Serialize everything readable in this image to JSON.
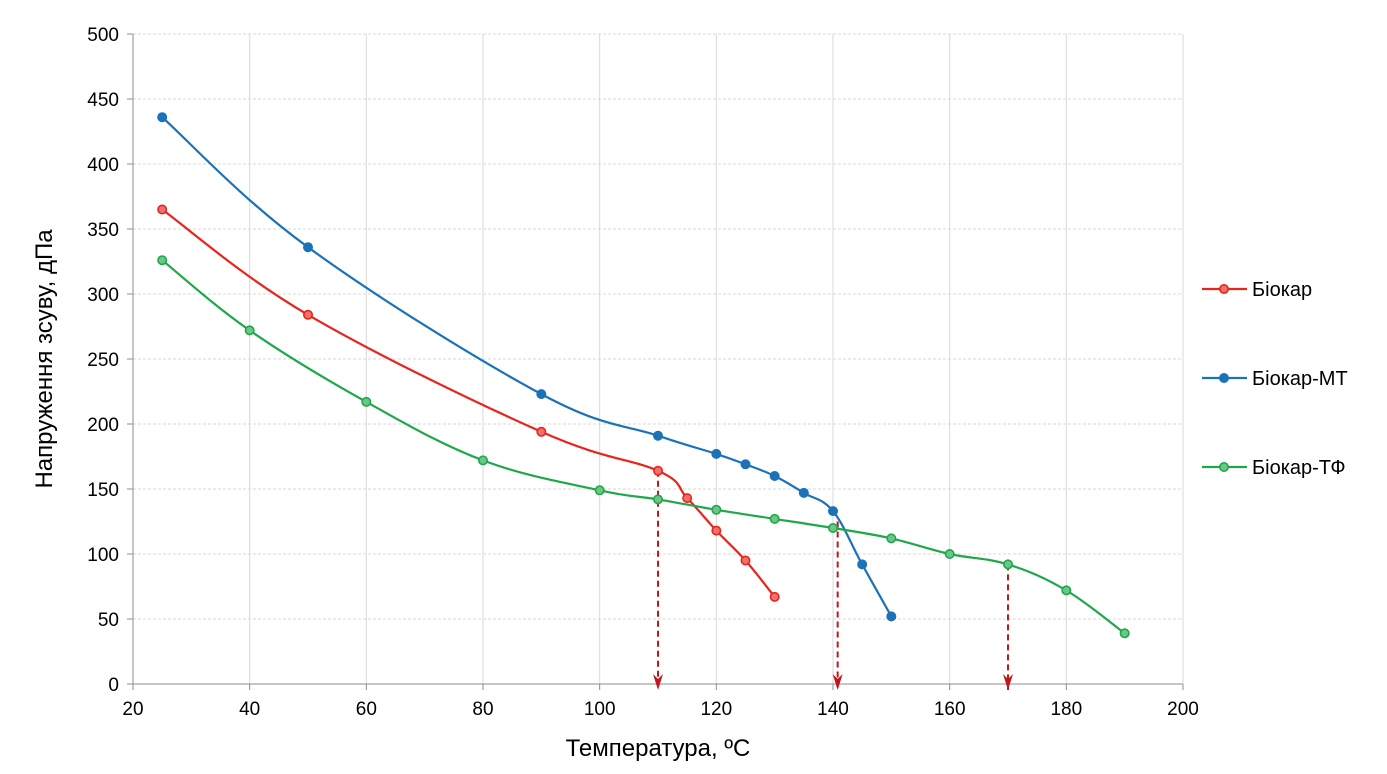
{
  "chart_data": {
    "type": "line",
    "title": "",
    "xlabel": "Температура, ºС",
    "ylabel": "Напруження зсуву, дПа",
    "xlim": [
      20,
      200
    ],
    "ylim": [
      0,
      500
    ],
    "xticks": [
      "20",
      "40",
      "60",
      "80",
      "100",
      "120",
      "140",
      "160",
      "180",
      "200"
    ],
    "yticks": [
      "0",
      "50",
      "100",
      "150",
      "200",
      "250",
      "300",
      "350",
      "400",
      "450",
      "500"
    ],
    "grid": true,
    "legend_position": "right",
    "series": [
      {
        "name": "Біокар",
        "color": "#e8241b",
        "x": [
          25,
          50,
          90,
          110,
          115,
          120,
          125,
          130
        ],
        "y": [
          365,
          284,
          194,
          164,
          143,
          118,
          95,
          67
        ]
      },
      {
        "name": "Біокар-МТ",
        "color": "#1b72b8",
        "x": [
          25,
          50,
          90,
          110,
          120,
          125,
          130,
          135,
          140,
          145,
          150
        ],
        "y": [
          436,
          336,
          223,
          191,
          177,
          169,
          160,
          147,
          133,
          92,
          52
        ]
      },
      {
        "name": "Біокар-ТФ",
        "color": "#1fa84a",
        "x": [
          25,
          40,
          60,
          80,
          100,
          110,
          120,
          130,
          140,
          150,
          160,
          170,
          180,
          190
        ],
        "y": [
          326,
          272,
          217,
          172,
          149,
          142,
          134,
          127,
          120,
          112,
          100,
          92,
          72,
          39
        ]
      }
    ],
    "markers": [
      {
        "x": 110,
        "from_y": 164,
        "color": "#c0161c"
      },
      {
        "x": 140.8,
        "from_y": 125,
        "color": "#c0161c"
      },
      {
        "x": 170,
        "from_y": 92,
        "color": "#c0161c"
      }
    ]
  }
}
